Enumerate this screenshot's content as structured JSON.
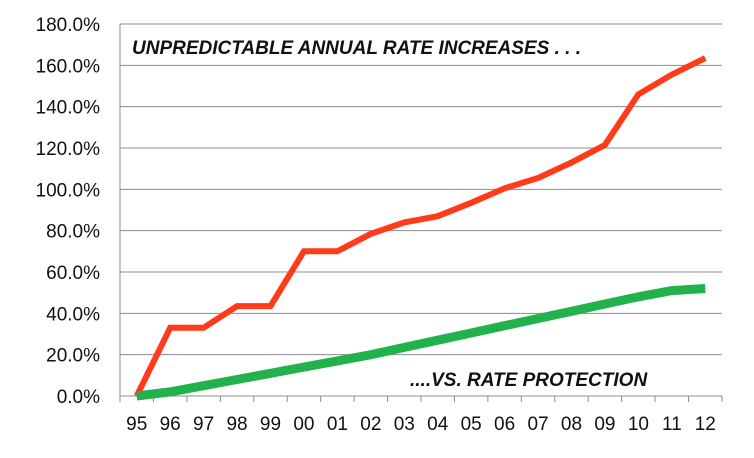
{
  "chart_data": {
    "type": "line",
    "title": "",
    "xlabel": "",
    "ylabel": "",
    "categories": [
      "95",
      "96",
      "97",
      "98",
      "99",
      "00",
      "01",
      "02",
      "03",
      "04",
      "05",
      "06",
      "07",
      "08",
      "09",
      "10",
      "11",
      "12"
    ],
    "ylim": [
      0,
      180
    ],
    "yticks": [
      0,
      20,
      40,
      60,
      80,
      100,
      120,
      140,
      160,
      180
    ],
    "ytick_labels": [
      "0.0%",
      "20.0%",
      "40.0%",
      "60.0%",
      "80.0%",
      "100.0%",
      "120.0%",
      "140.0%",
      "160.0%",
      "180.0%"
    ],
    "grid": true,
    "legend": "none",
    "series": [
      {
        "values": [
          0,
          33,
          33,
          43.5,
          43.5,
          70,
          70,
          78.5,
          84,
          87,
          93.5,
          100.5,
          105.5,
          113,
          121.5,
          146,
          155.5,
          163.5
        ],
        "color": "#ff3b1a"
      },
      {
        "values": [
          0,
          2,
          5,
          8,
          11,
          14,
          17,
          20,
          23.5,
          27,
          30.5,
          34,
          37.5,
          41,
          44.5,
          48,
          51,
          52
        ],
        "color": "#22b24c"
      }
    ],
    "annotations": [
      {
        "text": "UNPREDICTABLE ANNUAL RATE INCREASES . . ."
      },
      {
        "text": "....VS. RATE PROTECTION"
      }
    ]
  }
}
